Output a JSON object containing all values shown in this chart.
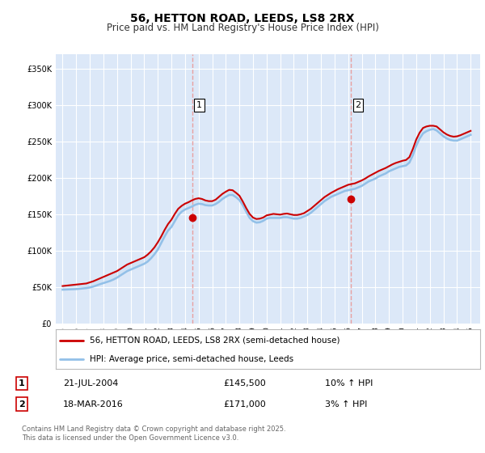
{
  "title": "56, HETTON ROAD, LEEDS, LS8 2RX",
  "subtitle": "Price paid vs. HM Land Registry's House Price Index (HPI)",
  "ytick_values": [
    0,
    50000,
    100000,
    150000,
    200000,
    250000,
    300000,
    350000
  ],
  "ylim": [
    0,
    370000
  ],
  "xlim_start": 1994.5,
  "xlim_end": 2025.7,
  "xticks": [
    1995,
    1996,
    1997,
    1998,
    1999,
    2000,
    2001,
    2002,
    2003,
    2004,
    2005,
    2006,
    2007,
    2008,
    2009,
    2010,
    2011,
    2012,
    2013,
    2014,
    2015,
    2016,
    2017,
    2018,
    2019,
    2020,
    2021,
    2022,
    2023,
    2024,
    2025
  ],
  "background_color": "#ffffff",
  "plot_bg_color": "#dce8f8",
  "grid_color": "#ffffff",
  "hpi_color": "#92c0e8",
  "price_color": "#cc0000",
  "vline_color": "#e8a0a0",
  "marker1_x": 2004.55,
  "marker1_y": 145500,
  "marker1_label": "1",
  "marker1_date": "21-JUL-2004",
  "marker1_price": "£145,500",
  "marker1_hpi": "10% ↑ HPI",
  "marker2_x": 2016.22,
  "marker2_y": 171000,
  "marker2_label": "2",
  "marker2_date": "18-MAR-2016",
  "marker2_price": "£171,000",
  "marker2_hpi": "3% ↑ HPI",
  "legend_label1": "56, HETTON ROAD, LEEDS, LS8 2RX (semi-detached house)",
  "legend_label2": "HPI: Average price, semi-detached house, Leeds",
  "footer": "Contains HM Land Registry data © Crown copyright and database right 2025.\nThis data is licensed under the Open Government Licence v3.0.",
  "hpi_data_x": [
    1995.0,
    1995.25,
    1995.5,
    1995.75,
    1996.0,
    1996.25,
    1996.5,
    1996.75,
    1997.0,
    1997.25,
    1997.5,
    1997.75,
    1998.0,
    1998.25,
    1998.5,
    1998.75,
    1999.0,
    1999.25,
    1999.5,
    1999.75,
    2000.0,
    2000.25,
    2000.5,
    2000.75,
    2001.0,
    2001.25,
    2001.5,
    2001.75,
    2002.0,
    2002.25,
    2002.5,
    2002.75,
    2003.0,
    2003.25,
    2003.5,
    2003.75,
    2004.0,
    2004.25,
    2004.5,
    2004.75,
    2005.0,
    2005.25,
    2005.5,
    2005.75,
    2006.0,
    2006.25,
    2006.5,
    2006.75,
    2007.0,
    2007.25,
    2007.5,
    2007.75,
    2008.0,
    2008.25,
    2008.5,
    2008.75,
    2009.0,
    2009.25,
    2009.5,
    2009.75,
    2010.0,
    2010.25,
    2010.5,
    2010.75,
    2011.0,
    2011.25,
    2011.5,
    2011.75,
    2012.0,
    2012.25,
    2012.5,
    2012.75,
    2013.0,
    2013.25,
    2013.5,
    2013.75,
    2014.0,
    2014.25,
    2014.5,
    2014.75,
    2015.0,
    2015.25,
    2015.5,
    2015.75,
    2016.0,
    2016.25,
    2016.5,
    2016.75,
    2017.0,
    2017.25,
    2017.5,
    2017.75,
    2018.0,
    2018.25,
    2018.5,
    2018.75,
    2019.0,
    2019.25,
    2019.5,
    2019.75,
    2020.0,
    2020.25,
    2020.5,
    2020.75,
    2021.0,
    2021.25,
    2021.5,
    2021.75,
    2022.0,
    2022.25,
    2022.5,
    2022.75,
    2023.0,
    2023.25,
    2023.5,
    2023.75,
    2024.0,
    2024.25,
    2024.5,
    2024.75,
    2025.0
  ],
  "hpi_data_y": [
    47000,
    47200,
    47400,
    47600,
    47800,
    48200,
    48700,
    49200,
    50000,
    51200,
    52800,
    54500,
    56000,
    57500,
    59000,
    61000,
    63500,
    66500,
    69500,
    72500,
    74500,
    76500,
    78500,
    80500,
    82500,
    85500,
    90000,
    95500,
    102000,
    111000,
    120000,
    128000,
    133000,
    141000,
    149000,
    154000,
    157000,
    159000,
    161000,
    163500,
    165000,
    164500,
    163000,
    162500,
    162500,
    164500,
    167500,
    171500,
    174500,
    177000,
    177000,
    174000,
    170000,
    163000,
    154000,
    145500,
    141000,
    139000,
    139500,
    141500,
    144500,
    145500,
    145500,
    145500,
    145500,
    146500,
    146500,
    145500,
    144500,
    144500,
    145500,
    147500,
    149500,
    152500,
    156500,
    160500,
    164500,
    168500,
    171500,
    174500,
    176500,
    178500,
    180500,
    182500,
    183500,
    184500,
    185500,
    187500,
    189500,
    192500,
    195500,
    197500,
    199500,
    202500,
    204500,
    206500,
    209500,
    211500,
    213500,
    215500,
    216500,
    217500,
    221500,
    231500,
    244500,
    254500,
    261500,
    264500,
    266500,
    267500,
    265500,
    261500,
    257500,
    254500,
    252500,
    251500,
    251500,
    253500,
    255500,
    257500,
    259500
  ],
  "price_data_x": [
    1995.0,
    1995.25,
    1995.5,
    1995.75,
    1996.0,
    1996.25,
    1996.5,
    1996.75,
    1997.0,
    1997.25,
    1997.5,
    1997.75,
    1998.0,
    1998.25,
    1998.5,
    1998.75,
    1999.0,
    1999.25,
    1999.5,
    1999.75,
    2000.0,
    2000.25,
    2000.5,
    2000.75,
    2001.0,
    2001.25,
    2001.5,
    2001.75,
    2002.0,
    2002.25,
    2002.5,
    2002.75,
    2003.0,
    2003.25,
    2003.5,
    2003.75,
    2004.0,
    2004.25,
    2004.5,
    2004.75,
    2005.0,
    2005.25,
    2005.5,
    2005.75,
    2006.0,
    2006.25,
    2006.5,
    2006.75,
    2007.0,
    2007.25,
    2007.5,
    2007.75,
    2008.0,
    2008.25,
    2008.5,
    2008.75,
    2009.0,
    2009.25,
    2009.5,
    2009.75,
    2010.0,
    2010.25,
    2010.5,
    2010.75,
    2011.0,
    2011.25,
    2011.5,
    2011.75,
    2012.0,
    2012.25,
    2012.5,
    2012.75,
    2013.0,
    2013.25,
    2013.5,
    2013.75,
    2014.0,
    2014.25,
    2014.5,
    2014.75,
    2015.0,
    2015.25,
    2015.5,
    2015.75,
    2016.0,
    2016.25,
    2016.5,
    2016.75,
    2017.0,
    2017.25,
    2017.5,
    2017.75,
    2018.0,
    2018.25,
    2018.5,
    2018.75,
    2019.0,
    2019.25,
    2019.5,
    2019.75,
    2020.0,
    2020.25,
    2020.5,
    2020.75,
    2021.0,
    2021.25,
    2021.5,
    2021.75,
    2022.0,
    2022.25,
    2022.5,
    2022.75,
    2023.0,
    2023.25,
    2023.5,
    2023.75,
    2024.0,
    2024.25,
    2024.5,
    2024.75,
    2025.0
  ],
  "price_data_y": [
    52000,
    52500,
    53000,
    53500,
    54000,
    54500,
    55000,
    55500,
    57000,
    58500,
    60500,
    62500,
    64500,
    66500,
    68500,
    70500,
    72500,
    75500,
    78500,
    81500,
    83500,
    85500,
    87500,
    89500,
    91500,
    95000,
    99500,
    105000,
    112000,
    120000,
    129000,
    137000,
    143000,
    151000,
    158000,
    162000,
    165000,
    167000,
    169500,
    171500,
    172500,
    171500,
    169500,
    168500,
    168500,
    170500,
    174500,
    178500,
    181500,
    184000,
    183500,
    180000,
    176000,
    168000,
    159000,
    151000,
    146000,
    144000,
    144500,
    146000,
    149000,
    150000,
    151000,
    150500,
    150000,
    151000,
    151500,
    150500,
    149500,
    149500,
    150500,
    152000,
    155000,
    158000,
    162000,
    166000,
    170000,
    174000,
    177000,
    180000,
    182500,
    185000,
    187000,
    189000,
    191000,
    192000,
    193000,
    195000,
    197000,
    199500,
    202500,
    205000,
    207500,
    210000,
    212000,
    214000,
    216500,
    219000,
    221000,
    222500,
    224000,
    225000,
    229000,
    240000,
    253000,
    262500,
    269000,
    271000,
    272000,
    272000,
    271000,
    267000,
    263000,
    260000,
    258000,
    257000,
    257500,
    259000,
    261000,
    263000,
    265000
  ]
}
